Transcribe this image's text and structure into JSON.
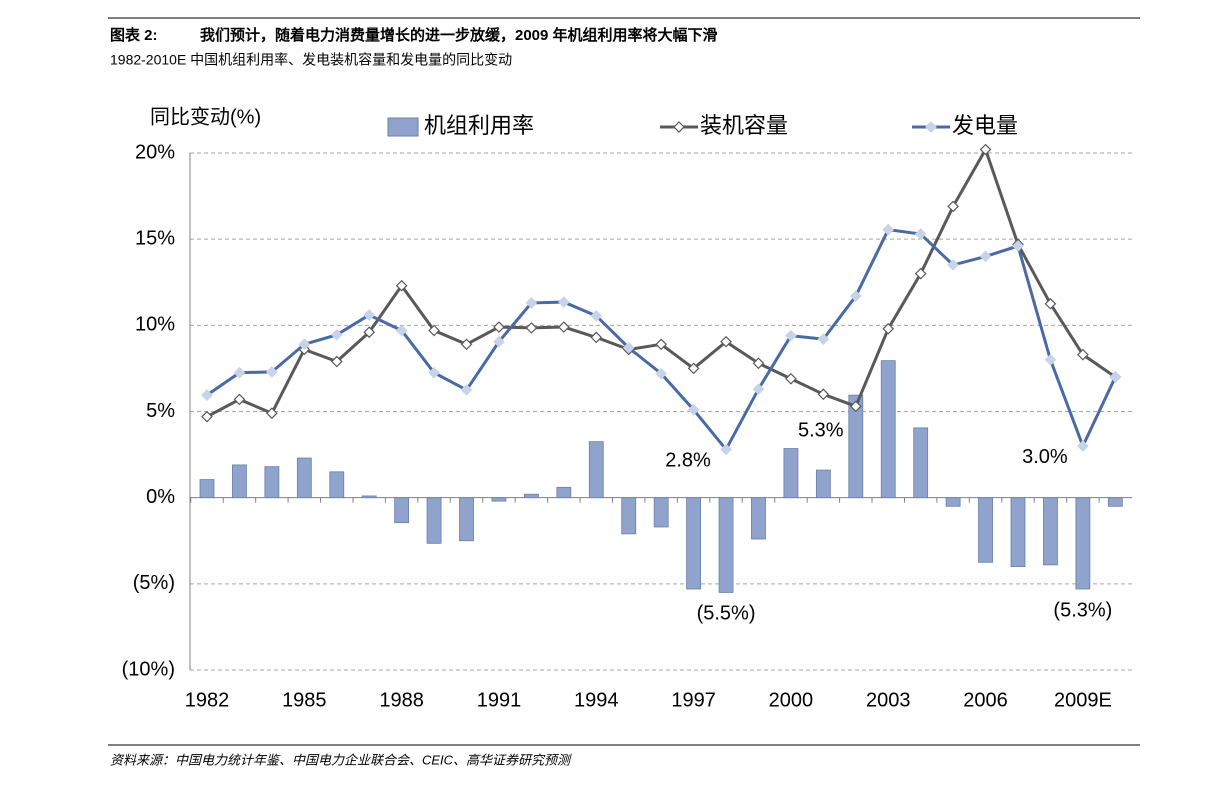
{
  "chart_data": {
    "type": "bar-line",
    "figure_label": "图表 2:",
    "title": "我们预计，随着电力消费量增长的进一步放缓，2009 年机组利用率将大幅下滑",
    "subtitle": "1982-2010E 中国机组利用率、发电装机容量和发电量的同比变动",
    "ylabel": "同比变动(%)",
    "source": "资料来源：中国电力统计年鉴、中国电力企业联合会、CEIC、高华证券研究预测",
    "categories": [
      "1982",
      null,
      null,
      "1985",
      null,
      null,
      "1988",
      null,
      null,
      "1991",
      null,
      null,
      "1994",
      null,
      null,
      "1997",
      null,
      null,
      "2000",
      null,
      null,
      "2003",
      null,
      null,
      "2006",
      null,
      null,
      "2009E",
      null
    ],
    "ylim": [
      -10,
      20
    ],
    "yticks": [
      {
        "value": -10,
        "label": "(10%)"
      },
      {
        "value": -5,
        "label": "(5%)"
      },
      {
        "value": 0,
        "label": "0%"
      },
      {
        "value": 5,
        "label": "5%"
      },
      {
        "value": 10,
        "label": "10%"
      },
      {
        "value": 15,
        "label": "15%"
      },
      {
        "value": 20,
        "label": "20%"
      }
    ],
    "grid": true,
    "series": [
      {
        "name": "机组利用率",
        "kind": "bar",
        "color": "#8fa3cc",
        "values": [
          1.05,
          1.9,
          1.8,
          2.3,
          1.5,
          0.1,
          -1.45,
          -2.65,
          -2.5,
          -0.2,
          0.2,
          0.6,
          3.25,
          -2.1,
          -1.7,
          -5.3,
          -5.5,
          -2.4,
          2.85,
          1.6,
          5.95,
          7.95,
          4.05,
          -0.5,
          -3.75,
          -4.0,
          -3.9,
          -5.3,
          -0.5
        ],
        "value_labels": [
          null,
          null,
          null,
          null,
          null,
          null,
          null,
          null,
          null,
          null,
          null,
          null,
          null,
          null,
          null,
          null,
          "(5.5%)",
          null,
          null,
          null,
          null,
          null,
          null,
          null,
          null,
          null,
          null,
          "(5.3%)",
          null
        ]
      },
      {
        "name": "装机容量",
        "kind": "line",
        "color": "#595959",
        "values": [
          4.7,
          5.7,
          4.9,
          8.6,
          7.9,
          9.6,
          12.3,
          9.7,
          8.9,
          9.9,
          9.85,
          9.9,
          9.3,
          8.6,
          8.9,
          7.5,
          9.05,
          7.8,
          6.9,
          6.0,
          5.3,
          9.8,
          13.0,
          16.9,
          20.2,
          14.7,
          11.25,
          8.3,
          7.0
        ],
        "value_labels": [
          null,
          null,
          null,
          null,
          null,
          null,
          null,
          null,
          null,
          null,
          null,
          null,
          null,
          null,
          null,
          null,
          null,
          null,
          null,
          null,
          "5.3%",
          null,
          null,
          null,
          null,
          null,
          null,
          null,
          null
        ]
      },
      {
        "name": "发电量",
        "kind": "line",
        "color": "#4a6aa5",
        "values": [
          5.95,
          7.25,
          7.3,
          8.9,
          9.45,
          10.6,
          9.7,
          7.25,
          6.25,
          9.05,
          11.3,
          11.35,
          10.55,
          8.7,
          7.2,
          5.1,
          2.8,
          6.3,
          9.4,
          9.2,
          11.7,
          15.55,
          15.3,
          13.5,
          14.0,
          14.6,
          8.0,
          3.0,
          7.0
        ],
        "value_labels": [
          null,
          null,
          null,
          null,
          null,
          null,
          null,
          null,
          null,
          null,
          null,
          null,
          null,
          null,
          null,
          null,
          "2.8%",
          null,
          null,
          null,
          null,
          null,
          null,
          null,
          null,
          null,
          null,
          "3.0%",
          null
        ]
      }
    ]
  }
}
